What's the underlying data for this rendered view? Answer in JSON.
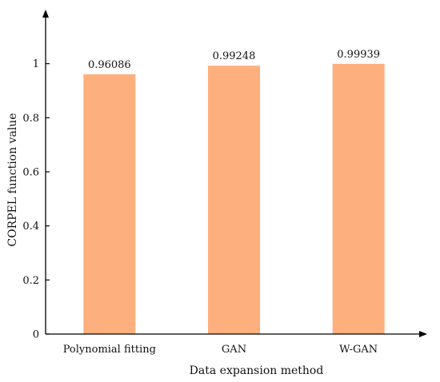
{
  "chart_data": {
    "type": "bar",
    "title": "",
    "xlabel": "Data expansion method",
    "ylabel": "CORPEL function value",
    "categories": [
      "Polynomial fitting",
      "GAN",
      "W-GAN"
    ],
    "values": [
      0.96086,
      0.99248,
      0.99939
    ],
    "value_labels": [
      "0.96086",
      "0.99248",
      "0.99939"
    ],
    "ylim": [
      0,
      1.2
    ],
    "yticks": [
      0,
      0.2,
      0.4,
      0.6,
      0.8,
      1
    ],
    "ytick_labels": [
      "0",
      "0.2",
      "0.4",
      "0.6",
      "0.8",
      "1"
    ],
    "grid": false,
    "legend": "none",
    "colors": {
      "bar": "#FDB07E",
      "axis": "#000000"
    }
  }
}
